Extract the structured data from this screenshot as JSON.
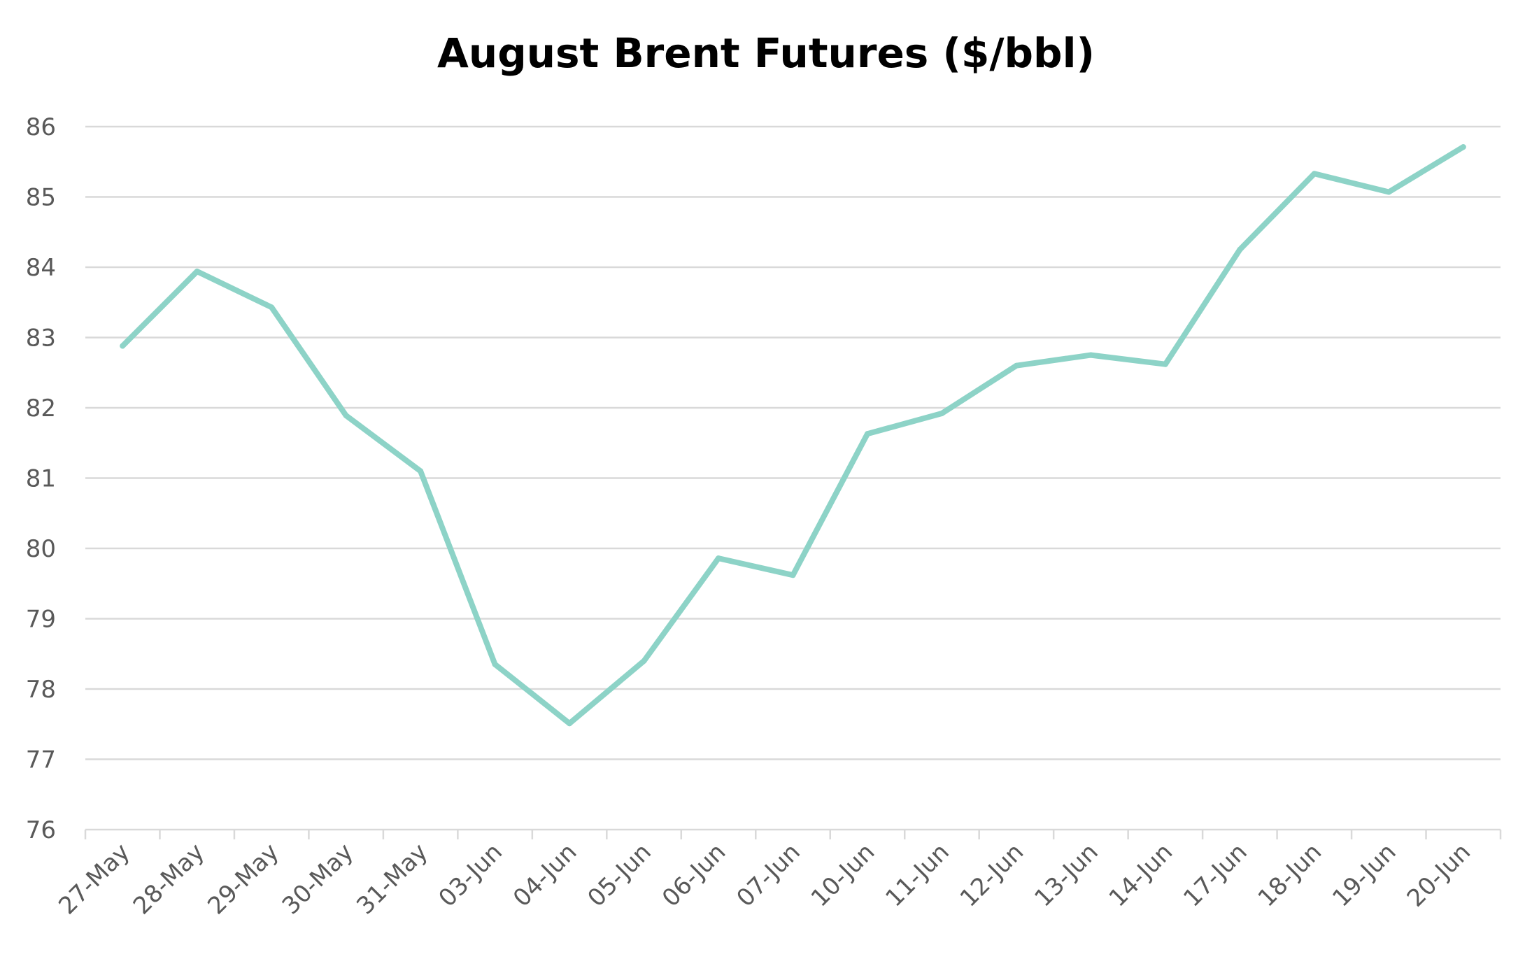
{
  "chart_data": {
    "type": "line",
    "title": "August Brent Futures ($/bbl)",
    "xlabel": "",
    "ylabel": "",
    "categories": [
      "27-May",
      "28-May",
      "29-May",
      "30-May",
      "31-May",
      "03-Jun",
      "04-Jun",
      "05-Jun",
      "06-Jun",
      "07-Jun",
      "10-Jun",
      "11-Jun",
      "12-Jun",
      "13-Jun",
      "14-Jun",
      "17-Jun",
      "18-Jun",
      "19-Jun",
      "20-Jun"
    ],
    "series": [
      {
        "values": [
          82.88,
          83.94,
          83.43,
          81.89,
          81.1,
          78.35,
          77.51,
          78.4,
          79.86,
          79.62,
          81.63,
          81.92,
          82.6,
          82.75,
          82.62,
          84.25,
          85.33,
          85.07,
          85.71
        ],
        "color": "#8dd3c7"
      }
    ],
    "ylim": [
      76,
      86
    ],
    "yticks": [
      76,
      77,
      78,
      79,
      80,
      81,
      82,
      83,
      84,
      85,
      86
    ],
    "grid": true,
    "legend": "none",
    "colors": {
      "line": "#8dd3c7",
      "grid": "#d9d9d9",
      "axis": "#d9d9d9",
      "tick_text": "#595959",
      "title": "#000000"
    }
  }
}
